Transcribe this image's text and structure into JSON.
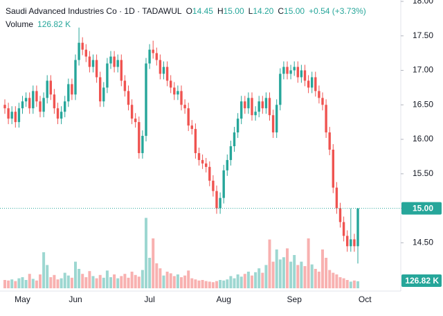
{
  "chart_data": {
    "type": "candlestick",
    "title": "Saudi Advanced Industries Co · 1D · TADAWUL",
    "ohlc_legend": [
      {
        "key": "O",
        "value": "14.45"
      },
      {
        "key": "H",
        "value": "15.00"
      },
      {
        "key": "L",
        "value": "14.20"
      },
      {
        "key": "C",
        "value": "15.00"
      }
    ],
    "change": "+0.54 (+3.73%)",
    "last_price_label": "15.00",
    "up_color": "#26a69a",
    "down_color": "#ef5350",
    "grid": false,
    "ylim": [
      13.8,
      18.02
    ],
    "yticks": [
      {
        "value": 14.5,
        "label": "14.50"
      },
      {
        "value": 15,
        "label": "15.00"
      },
      {
        "value": 15.5,
        "label": "15.50"
      },
      {
        "value": 16,
        "label": "16.00"
      },
      {
        "value": 16.5,
        "label": "16.50"
      },
      {
        "value": 17,
        "label": "17.00"
      },
      {
        "value": 17.5,
        "label": "17.50"
      },
      {
        "value": 18,
        "label": "18.00"
      }
    ],
    "categories": [
      null,
      null,
      null,
      null,
      null,
      "May",
      null,
      null,
      null,
      null,
      null,
      null,
      null,
      null,
      null,
      null,
      null,
      null,
      null,
      null,
      "Jun",
      null,
      null,
      null,
      null,
      null,
      null,
      null,
      null,
      null,
      null,
      null,
      null,
      null,
      null,
      null,
      null,
      null,
      null,
      null,
      null,
      "Jul",
      null,
      null,
      null,
      null,
      null,
      null,
      null,
      null,
      null,
      null,
      null,
      null,
      null,
      null,
      null,
      null,
      null,
      null,
      null,
      null,
      "Aug",
      null,
      null,
      null,
      null,
      null,
      null,
      null,
      null,
      null,
      null,
      null,
      null,
      null,
      null,
      null,
      null,
      null,
      null,
      null,
      "Sep",
      null,
      null,
      null,
      null,
      null,
      null,
      null,
      null,
      null,
      null,
      null,
      null,
      null,
      null,
      null,
      null,
      null,
      null,
      null,
      "Oct"
    ],
    "open": [
      16.5,
      16.45,
      16.3,
      16.4,
      16.25,
      16.45,
      16.55,
      16.6,
      16.45,
      16.7,
      16.55,
      16.4,
      16.6,
      16.85,
      16.65,
      16.45,
      16.3,
      16.4,
      16.55,
      16.8,
      16.65,
      17.15,
      17.4,
      17.3,
      17.2,
      17.05,
      17.15,
      16.9,
      16.55,
      16.75,
      17.1,
      17.2,
      17.05,
      17.15,
      16.85,
      16.7,
      16.5,
      16.3,
      16.25,
      15.8,
      16.05,
      17.1,
      17.3,
      17.25,
      17.15,
      16.95,
      17.05,
      16.85,
      16.75,
      16.65,
      16.7,
      16.5,
      16.45,
      16.2,
      16.15,
      15.8,
      15.7,
      15.65,
      15.6,
      15.4,
      15.25,
      15.0,
      15.15,
      15.55,
      15.7,
      15.9,
      16.1,
      16.3,
      16.55,
      16.45,
      16.6,
      16.35,
      16.4,
      16.55,
      16.45,
      16.6,
      16.35,
      16.1,
      16.5,
      16.95,
      17.05,
      16.95,
      17.0,
      17.05,
      16.9,
      17.0,
      16.85,
      16.75,
      16.9,
      16.7,
      16.6,
      16.5,
      16.1,
      15.85,
      15.3,
      15.0,
      14.8,
      14.6,
      14.45,
      14.55,
      14.45,
      null,
      null
    ],
    "high": [
      16.58,
      16.53,
      16.48,
      16.48,
      16.53,
      16.63,
      16.68,
      16.68,
      16.78,
      16.78,
      16.63,
      16.68,
      16.93,
      16.93,
      16.73,
      16.53,
      16.48,
      16.63,
      16.88,
      16.88,
      17.23,
      17.62,
      17.48,
      17.38,
      17.28,
      17.23,
      17.23,
      16.98,
      16.83,
      17.18,
      17.28,
      17.28,
      17.23,
      17.23,
      16.93,
      16.78,
      16.58,
      16.38,
      16.33,
      16.13,
      17.18,
      17.38,
      17.43,
      17.33,
      17.23,
      17.13,
      17.13,
      16.93,
      16.83,
      16.78,
      16.78,
      16.58,
      16.53,
      16.28,
      16.23,
      15.88,
      15.78,
      15.73,
      15.68,
      15.48,
      15.33,
      15.23,
      15.63,
      15.78,
      15.98,
      16.18,
      16.38,
      16.63,
      16.63,
      16.68,
      16.68,
      16.48,
      16.63,
      16.63,
      16.68,
      16.68,
      16.43,
      16.58,
      17.03,
      17.13,
      17.13,
      17.08,
      17.13,
      17.13,
      17.08,
      17.08,
      16.93,
      16.98,
      16.98,
      16.78,
      16.68,
      16.58,
      16.18,
      15.93,
      15.38,
      15.08,
      14.88,
      14.68,
      15.0,
      14.63,
      15.0,
      null,
      null
    ],
    "low": [
      16.37,
      16.22,
      16.22,
      16.17,
      16.17,
      16.37,
      16.47,
      16.37,
      16.37,
      16.47,
      16.32,
      16.32,
      16.52,
      16.57,
      16.37,
      16.22,
      16.22,
      16.32,
      16.47,
      16.57,
      16.57,
      17.07,
      17.22,
      17.12,
      16.97,
      16.97,
      16.82,
      16.47,
      16.47,
      16.67,
      17.02,
      16.97,
      16.97,
      16.77,
      16.62,
      16.42,
      16.22,
      16.17,
      15.72,
      15.72,
      15.97,
      17.02,
      17.17,
      17.07,
      16.87,
      16.87,
      16.77,
      16.67,
      16.57,
      16.57,
      16.42,
      16.37,
      16.12,
      16.07,
      15.72,
      15.62,
      15.57,
      15.52,
      15.32,
      15.17,
      14.92,
      14.92,
      15.07,
      15.47,
      15.62,
      15.82,
      16.02,
      16.22,
      16.37,
      16.37,
      16.27,
      16.27,
      16.32,
      16.37,
      16.37,
      16.27,
      16.02,
      16.02,
      16.42,
      16.87,
      16.87,
      16.87,
      16.92,
      16.82,
      16.82,
      16.77,
      16.67,
      16.67,
      16.62,
      16.52,
      16.42,
      16.02,
      15.77,
      15.22,
      14.92,
      14.72,
      14.52,
      14.37,
      14.37,
      14.37,
      14.2,
      null,
      null
    ],
    "close": [
      16.45,
      16.3,
      16.4,
      16.25,
      16.45,
      16.55,
      16.6,
      16.45,
      16.7,
      16.55,
      16.4,
      16.6,
      16.85,
      16.65,
      16.45,
      16.3,
      16.4,
      16.55,
      16.8,
      16.65,
      17.15,
      17.4,
      17.3,
      17.2,
      17.05,
      17.15,
      16.9,
      16.55,
      16.75,
      17.1,
      17.2,
      17.05,
      17.15,
      16.85,
      16.7,
      16.5,
      16.3,
      16.25,
      15.8,
      16.05,
      17.1,
      17.3,
      17.25,
      17.15,
      16.95,
      17.05,
      16.85,
      16.75,
      16.65,
      16.7,
      16.5,
      16.45,
      16.2,
      16.15,
      15.8,
      15.7,
      15.65,
      15.6,
      15.4,
      15.25,
      15.0,
      15.15,
      15.55,
      15.7,
      15.9,
      16.1,
      16.3,
      16.55,
      16.45,
      16.6,
      16.35,
      16.4,
      16.55,
      16.45,
      16.6,
      16.35,
      16.1,
      16.5,
      16.95,
      17.05,
      16.95,
      17.0,
      17.05,
      16.9,
      17.0,
      16.85,
      16.75,
      16.9,
      16.7,
      16.6,
      16.5,
      16.1,
      15.85,
      15.3,
      15.0,
      14.8,
      14.6,
      14.45,
      14.55,
      14.45,
      15.0,
      null,
      null
    ],
    "volume": {
      "name": "Volume",
      "label": "126.82 K",
      "vlim": [
        0,
        1300
      ],
      "values": [
        150,
        140,
        160,
        130,
        180,
        200,
        150,
        260,
        170,
        140,
        250,
        650,
        420,
        200,
        240,
        160,
        180,
        280,
        230,
        190,
        480,
        350,
        260,
        200,
        310,
        220,
        180,
        240,
        190,
        320,
        200,
        250,
        180,
        220,
        260,
        190,
        300,
        240,
        210,
        330,
        1270,
        550,
        900,
        450,
        360,
        230,
        300,
        270,
        220,
        250,
        200,
        230,
        320,
        180,
        160,
        140,
        150,
        130,
        120,
        110,
        130,
        150,
        140,
        160,
        220,
        180,
        250,
        210,
        260,
        300,
        230,
        290,
        360,
        280,
        420,
        880,
        480,
        700,
        520,
        560,
        720,
        480,
        600,
        420,
        480,
        400,
        900,
        430,
        350,
        300,
        700,
        550,
        330,
        280,
        250,
        200,
        180,
        150,
        120,
        140,
        126.82,
        null,
        null
      ]
    }
  }
}
